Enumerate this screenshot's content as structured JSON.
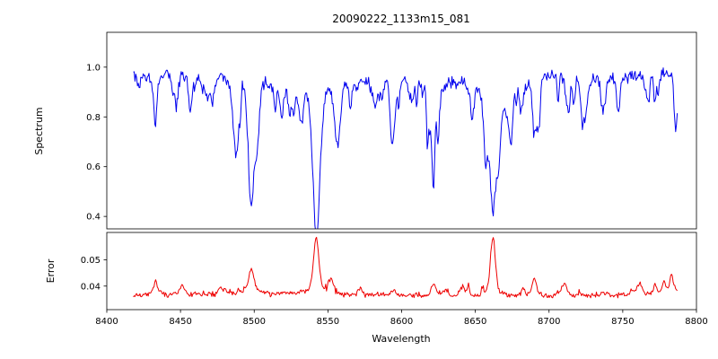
{
  "figure": {
    "background_color": "#ffffff",
    "axis_color": "#000000"
  },
  "chart_data": [
    {
      "type": "line",
      "panel": "spectrum",
      "title": "20090222_1133m15_081",
      "xlabel": "",
      "ylabel": "Spectrum",
      "series_color": "#0000ee",
      "xlim": [
        8400,
        8800
      ],
      "ylim": [
        0.35,
        1.14
      ],
      "xticks": [
        8400,
        8450,
        8500,
        8550,
        8600,
        8650,
        8700,
        8750,
        8800
      ],
      "yticks": [
        0.4,
        0.6,
        0.8,
        1.0
      ],
      "ytick_labels": [
        "0.4",
        "0.6",
        "0.8",
        "1.0"
      ],
      "grid": false,
      "legend": "none",
      "x_data_range": [
        8418,
        8787
      ],
      "continuum_level": 0.96,
      "noise_sigma": 0.013,
      "minor_line_count": 80,
      "sample_count": 660,
      "seed": 20090222,
      "absorption_lines": [
        {
          "center": 8433,
          "depth": 0.2,
          "width": 1.0
        },
        {
          "center": 8468,
          "depth": 0.1,
          "width": 0.9
        },
        {
          "center": 8498,
          "depth": 0.44,
          "width": 1.9
        },
        {
          "center": 8514,
          "depth": 0.13,
          "width": 1.0
        },
        {
          "center": 8542,
          "depth": 0.57,
          "width": 2.3
        },
        {
          "center": 8582,
          "depth": 0.1,
          "width": 1.0
        },
        {
          "center": 8598,
          "depth": 0.09,
          "width": 0.9
        },
        {
          "center": 8621,
          "depth": 0.1,
          "width": 1.0
        },
        {
          "center": 8662,
          "depth": 0.52,
          "width": 2.1
        },
        {
          "center": 8674,
          "depth": 0.11,
          "width": 0.9
        },
        {
          "center": 8690,
          "depth": 0.22,
          "width": 1.2
        },
        {
          "center": 8713,
          "depth": 0.1,
          "width": 0.9
        },
        {
          "center": 8736,
          "depth": 0.1,
          "width": 0.9
        },
        {
          "center": 8747,
          "depth": 0.14,
          "width": 1.0
        },
        {
          "center": 8772,
          "depth": 0.11,
          "width": 0.9
        }
      ]
    },
    {
      "type": "line",
      "panel": "error",
      "title": "",
      "xlabel": "Wavelength",
      "ylabel": "Error",
      "series_color": "#ee0000",
      "xlim": [
        8400,
        8800
      ],
      "ylim": [
        0.031,
        0.0605
      ],
      "xticks": [
        8400,
        8450,
        8500,
        8550,
        8600,
        8650,
        8700,
        8750,
        8800
      ],
      "xtick_labels": [
        "8400",
        "8450",
        "8500",
        "8550",
        "8600",
        "8650",
        "8700",
        "8750",
        "8800"
      ],
      "yticks": [
        0.04,
        0.05
      ],
      "ytick_labels": [
        "0.04",
        "0.05"
      ],
      "grid": false,
      "legend": "none",
      "x_data_range": [
        8418,
        8787
      ],
      "baseline": 0.0366,
      "noise_sigma": 0.0005,
      "minor_bump_count": 40,
      "sample_count": 660,
      "seed": 1133,
      "peaks": [
        {
          "center": 8433,
          "height": 0.003,
          "width": 1.0
        },
        {
          "center": 8498,
          "height": 0.0095,
          "width": 1.5
        },
        {
          "center": 8542,
          "height": 0.0215,
          "width": 1.7
        },
        {
          "center": 8662,
          "height": 0.021,
          "width": 1.6
        },
        {
          "center": 8690,
          "height": 0.006,
          "width": 1.1
        },
        {
          "center": 8772,
          "height": 0.004,
          "width": 1.0
        },
        {
          "center": 8783,
          "height": 0.005,
          "width": 0.9
        }
      ]
    }
  ]
}
